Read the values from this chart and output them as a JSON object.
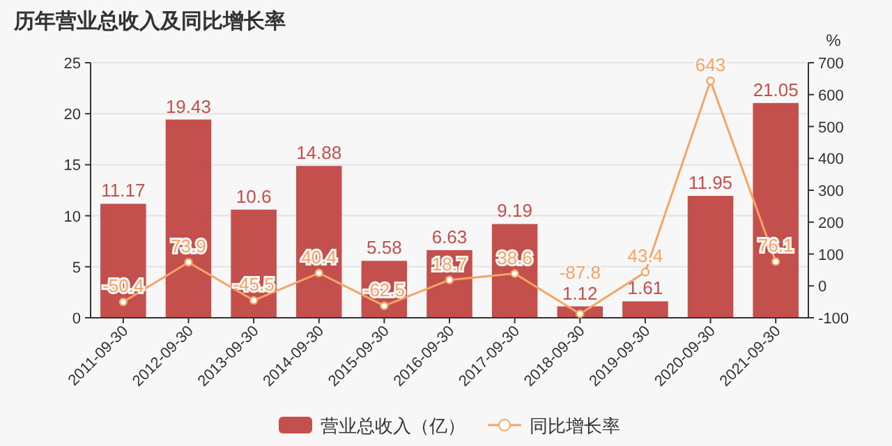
{
  "chart_data": {
    "type": "bar",
    "title": "历年营业总收入及同比增长率",
    "y2label": "%",
    "categories": [
      "2011-09-30",
      "2012-09-30",
      "2013-09-30",
      "2014-09-30",
      "2015-09-30",
      "2016-09-30",
      "2017-09-30",
      "2018-09-30",
      "2019-09-30",
      "2020-09-30",
      "2021-09-30"
    ],
    "series": [
      {
        "name": "营业总收入（亿）",
        "color": "#c4504e",
        "values": [
          11.17,
          19.43,
          10.6,
          14.88,
          5.58,
          6.63,
          9.19,
          1.12,
          1.61,
          11.95,
          21.05
        ]
      },
      {
        "name": "同比增长率",
        "type": "line",
        "axis": "y2",
        "color": "#f5a465",
        "values": [
          -50.4,
          73.9,
          -45.5,
          40.4,
          -62.5,
          18.7,
          38.6,
          -87.8,
          43.4,
          643,
          76.1
        ]
      }
    ],
    "ylim": [
      0,
      25
    ],
    "yticks": [
      0,
      5,
      10,
      15,
      20,
      25
    ],
    "y2lim": [
      -100,
      700
    ],
    "y2ticks": [
      -100,
      0,
      100,
      200,
      300,
      400,
      500,
      600,
      700
    ],
    "grid": "y",
    "legend": "bottom",
    "marker": "circle",
    "data_labels": true
  }
}
